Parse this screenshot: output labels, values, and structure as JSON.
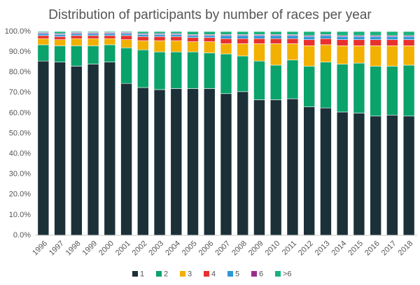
{
  "chart_data": {
    "type": "stacked_bar_100",
    "title": "Distribution of participants by number of races per year",
    "categories": [
      "1996",
      "1997",
      "1998",
      "1999",
      "2000",
      "2001",
      "2002",
      "2003",
      "2004",
      "2005",
      "2006",
      "2007",
      "2008",
      "2009",
      "2010",
      "2011",
      "2012",
      "2013",
      "2014",
      "2015",
      "2016",
      "2017",
      "2018"
    ],
    "series": [
      {
        "name": "1",
        "color": "#1c3038",
        "values": [
          85.5,
          85,
          83,
          84,
          85,
          74.5,
          72.5,
          71.5,
          72,
          72,
          72,
          69.5,
          70.5,
          66.5,
          66.5,
          67,
          63,
          62.5,
          60.5,
          60,
          58.5,
          59,
          58.5
        ]
      },
      {
        "name": "2",
        "color": "#0aa36c",
        "values": [
          8,
          8,
          10,
          9,
          8.5,
          17.5,
          18.5,
          18.5,
          18,
          18,
          17.5,
          19.5,
          17.5,
          19,
          17,
          19,
          20,
          22.5,
          23.5,
          24.5,
          24.5,
          24,
          25
        ]
      },
      {
        "name": "3",
        "color": "#f2b000",
        "values": [
          3,
          3,
          3.5,
          3.5,
          3,
          4,
          4.5,
          5.5,
          5.5,
          5,
          5.5,
          5,
          6,
          8.5,
          10.5,
          8,
          10,
          8.5,
          9,
          8.5,
          10,
          10,
          9.5
        ]
      },
      {
        "name": "4",
        "color": "#e8312f",
        "values": [
          1.5,
          1.5,
          1.5,
          1.5,
          1.5,
          2,
          2,
          2,
          2,
          2,
          2,
          2.5,
          2.5,
          2.5,
          2.5,
          2.5,
          3,
          3,
          3,
          3,
          3,
          3,
          3
        ]
      },
      {
        "name": "5",
        "color": "#2d97d6",
        "values": [
          1,
          1,
          1,
          1,
          1,
          1,
          1,
          1,
          1,
          1,
          1,
          1.5,
          1.5,
          1.5,
          1.5,
          1.5,
          1.5,
          1.5,
          1.5,
          1.5,
          1.5,
          1.5,
          1.5
        ]
      },
      {
        "name": "6",
        "color": "#9b2d8f",
        "values": [
          0.5,
          0.5,
          0.5,
          0.5,
          0.5,
          0.5,
          0.5,
          0.5,
          0.5,
          0.5,
          0.5,
          0.5,
          0.5,
          0.5,
          0.5,
          0.5,
          0.5,
          0.5,
          0.5,
          0.5,
          0.5,
          0.5,
          0.5
        ]
      },
      {
        "name": ">6",
        "color": "#19b27c",
        "values": [
          0.5,
          1,
          0.5,
          0.5,
          0.5,
          0.5,
          1,
          1,
          1,
          1.5,
          1.5,
          1.5,
          1.5,
          1.5,
          1.5,
          1.5,
          2,
          1.5,
          2,
          2,
          2,
          2,
          2
        ]
      }
    ],
    "ylim": [
      0,
      100
    ],
    "yticks": [
      {
        "value": 0,
        "label": "0.0%"
      },
      {
        "value": 10,
        "label": "10.0%"
      },
      {
        "value": 20,
        "label": "20.0%"
      },
      {
        "value": 30,
        "label": "30.0%"
      },
      {
        "value": 40,
        "label": "40.0%"
      },
      {
        "value": 50,
        "label": "50.0%"
      },
      {
        "value": 60,
        "label": "60.0%"
      },
      {
        "value": 70,
        "label": "70.0%"
      },
      {
        "value": 80,
        "label": "80.0%"
      },
      {
        "value": 90,
        "label": "90.0%"
      },
      {
        "value": 100,
        "label": "100.0%"
      }
    ],
    "legend": "bottom"
  }
}
